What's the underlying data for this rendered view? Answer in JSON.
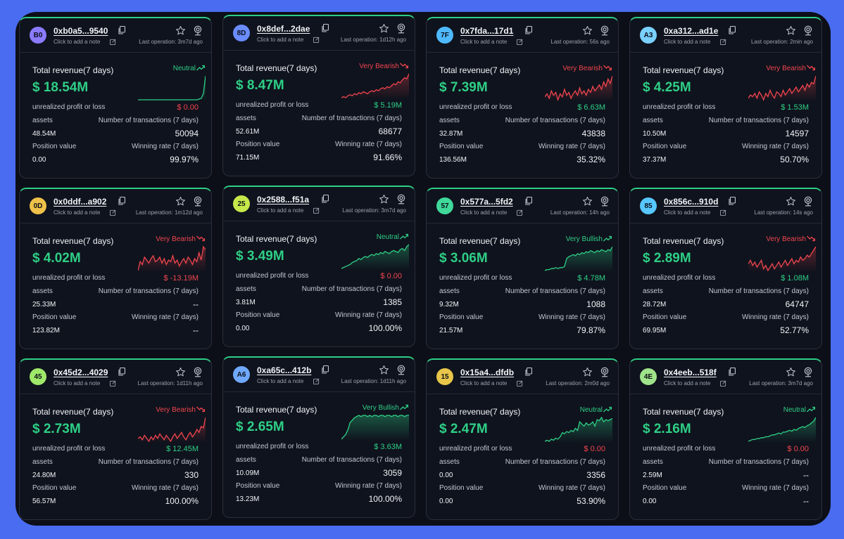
{
  "colors": {
    "bullish": "#2ecf86",
    "bearish": "#f0454e",
    "background": "#0c0f18",
    "card": "#0f131d",
    "page": "#4a6cf0"
  },
  "labels": {
    "total_revenue": "Total revenue(7 days)",
    "unrealized": "unrealized profit or loss",
    "assets": "assets",
    "tx_count": "Number of transactions (7 days)",
    "position_value": "Position value",
    "winning_rate": "Winning rate (7 days)",
    "add_note": "Click to add a note"
  },
  "cards": [
    {
      "avatar": "B0",
      "avatar_color": "#8b7bff",
      "address": "0xb0a5...9540",
      "last_op": "Last operation: 3m7d ago",
      "revenue": "$ 18.54M",
      "trend": "Neutral",
      "trend_dir": "up",
      "unrealized": "$ 0.00",
      "unrealized_sign": "neg",
      "assets": "48.54M",
      "tx_count": "50094",
      "position_value": "0.00",
      "winning_rate": "99.97%",
      "sparkline": [
        0,
        0,
        0,
        0,
        0,
        0,
        0,
        0,
        0,
        0,
        0,
        0,
        0,
        0,
        0,
        0,
        0,
        0,
        0,
        0,
        0,
        0,
        0,
        0,
        0,
        0,
        0,
        0,
        0,
        1,
        2,
        8,
        30
      ]
    },
    {
      "avatar": "8D",
      "avatar_color": "#6a8cff",
      "address": "0x8def...2dae",
      "last_op": "Last operation: 1d12h ago",
      "revenue": "$ 8.47M",
      "trend": "Very Bearish",
      "trend_dir": "down",
      "unrealized": "$ 5.19M",
      "unrealized_sign": "pos",
      "assets": "52.61M",
      "tx_count": "68677",
      "position_value": "71.15M",
      "winning_rate": "91.66%",
      "sparkline": [
        2,
        3,
        2,
        4,
        5,
        4,
        6,
        5,
        7,
        6,
        8,
        7,
        6,
        8,
        9,
        8,
        10,
        9,
        11,
        12,
        11,
        13,
        12,
        14,
        16,
        15,
        18,
        17,
        20,
        22,
        21,
        26
      ]
    },
    {
      "avatar": "7F",
      "avatar_color": "#4fb9ff",
      "address": "0x7fda...17d1",
      "last_op": "Last operation: 56s ago",
      "revenue": "$ 7.39M",
      "trend": "Very Bearish",
      "trend_dir": "down",
      "unrealized": "$ 6.63M",
      "unrealized_sign": "pos",
      "assets": "32.87M",
      "tx_count": "43838",
      "position_value": "136.56M",
      "winning_rate": "35.32%",
      "sparkline": [
        8,
        10,
        7,
        12,
        9,
        11,
        6,
        10,
        8,
        13,
        9,
        11,
        7,
        10,
        12,
        9,
        14,
        10,
        12,
        9,
        13,
        11,
        15,
        12,
        14,
        16,
        13,
        18,
        15,
        20,
        17,
        22
      ]
    },
    {
      "avatar": "A3",
      "avatar_color": "#7ad0ff",
      "address": "0xa312...ad1e",
      "last_op": "Last operation: 2min ago",
      "revenue": "$ 4.25M",
      "trend": "Very Bearish",
      "trend_dir": "down",
      "unrealized": "$ 1.53M",
      "unrealized_sign": "pos",
      "assets": "10.50M",
      "tx_count": "14597",
      "position_value": "37.37M",
      "winning_rate": "50.70%",
      "sparkline": [
        10,
        12,
        11,
        13,
        10,
        14,
        12,
        9,
        13,
        11,
        15,
        12,
        10,
        14,
        13,
        11,
        15,
        12,
        14,
        16,
        13,
        15,
        17,
        14,
        16,
        18,
        15,
        19,
        17,
        20,
        19,
        24
      ]
    },
    {
      "avatar": "0D",
      "avatar_color": "#f0c14a",
      "address": "0x0ddf...a902",
      "last_op": "Last operation: 1m12d ago",
      "revenue": "$ 4.02M",
      "trend": "Very Bearish",
      "trend_dir": "down",
      "unrealized": "$ -13.19M",
      "unrealized_sign": "neg",
      "assets": "25.33M",
      "tx_count": "--",
      "position_value": "123.82M",
      "winning_rate": "--",
      "sparkline": [
        12,
        18,
        16,
        21,
        19,
        17,
        20,
        22,
        18,
        19,
        21,
        17,
        20,
        16,
        19,
        18,
        22,
        17,
        19,
        15,
        18,
        20,
        17,
        21,
        19,
        16,
        20,
        18,
        24,
        19,
        28,
        26
      ]
    },
    {
      "avatar": "25",
      "avatar_color": "#c6e84a",
      "address": "0x2588...f51a",
      "last_op": "Last operation: 3m7d ago",
      "revenue": "$ 3.49M",
      "trend": "Neutral",
      "trend_dir": "up",
      "unrealized": "$ 0.00",
      "unrealized_sign": "neg",
      "assets": "3.81M",
      "tx_count": "1385",
      "position_value": "0.00",
      "winning_rate": "100.00%",
      "sparkline": [
        2,
        3,
        4,
        5,
        6,
        8,
        9,
        10,
        12,
        11,
        13,
        14,
        13,
        15,
        16,
        15,
        17,
        16,
        18,
        17,
        19,
        18,
        17,
        19,
        20,
        19,
        18,
        21,
        22,
        20,
        24,
        26
      ]
    },
    {
      "avatar": "57",
      "avatar_color": "#3fd99a",
      "address": "0x577a...5fd2",
      "last_op": "Last operation: 14h ago",
      "revenue": "$ 3.06M",
      "trend": "Very Bullish",
      "trend_dir": "up",
      "unrealized": "$ 4.78M",
      "unrealized_sign": "pos",
      "assets": "9.32M",
      "tx_count": "1088",
      "position_value": "21.57M",
      "winning_rate": "79.87%",
      "sparkline": [
        2,
        3,
        3,
        4,
        4,
        5,
        4,
        5,
        5,
        6,
        14,
        16,
        17,
        18,
        17,
        19,
        18,
        20,
        19,
        21,
        20,
        22,
        21,
        20,
        22,
        21,
        23,
        22,
        21,
        23,
        22,
        26
      ]
    },
    {
      "avatar": "85",
      "avatar_color": "#57c7ff",
      "address": "0x856c...910d",
      "last_op": "Last operation: 14s ago",
      "revenue": "$ 2.89M",
      "trend": "Very Bearish",
      "trend_dir": "down",
      "unrealized": "$ 1.08M",
      "unrealized_sign": "pos",
      "assets": "28.72M",
      "tx_count": "64747",
      "position_value": "69.95M",
      "winning_rate": "52.77%",
      "sparkline": [
        14,
        16,
        13,
        15,
        12,
        14,
        16,
        11,
        13,
        10,
        12,
        14,
        11,
        13,
        15,
        12,
        14,
        16,
        13,
        15,
        17,
        14,
        16,
        15,
        18,
        16,
        17,
        19,
        18,
        20,
        22,
        24
      ]
    },
    {
      "avatar": "45",
      "avatar_color": "#9ee86a",
      "address": "0x45d2...4029",
      "last_op": "Last operation: 1d11h ago",
      "revenue": "$ 2.73M",
      "trend": "Very Bearish",
      "trend_dir": "down",
      "unrealized": "$ 12.45M",
      "unrealized_sign": "pos",
      "assets": "24.80M",
      "tx_count": "330",
      "position_value": "56.57M",
      "winning_rate": "100.00%",
      "sparkline": [
        14,
        15,
        13,
        16,
        14,
        12,
        15,
        13,
        16,
        14,
        17,
        15,
        13,
        16,
        14,
        12,
        15,
        17,
        14,
        16,
        18,
        15,
        13,
        16,
        18,
        15,
        17,
        20,
        18,
        22,
        21,
        28
      ]
    },
    {
      "avatar": "A6",
      "avatar_color": "#6fa8ff",
      "address": "0xa65c...412b",
      "last_op": "Last operation: 1d11h ago",
      "revenue": "$ 2.65M",
      "trend": "Very Bullish",
      "trend_dir": "up",
      "unrealized": "$ 3.63M",
      "unrealized_sign": "pos",
      "assets": "10.09M",
      "tx_count": "3059",
      "position_value": "13.23M",
      "winning_rate": "100.00%",
      "sparkline": [
        2,
        4,
        6,
        10,
        16,
        18,
        20,
        21,
        22,
        21,
        22,
        22,
        21,
        22,
        21,
        22,
        22,
        21,
        22,
        22,
        21,
        22,
        22,
        21,
        22,
        22,
        21,
        22,
        22,
        21,
        22,
        22
      ]
    },
    {
      "avatar": "15",
      "avatar_color": "#e8c64a",
      "address": "0x15a4...dfdb",
      "last_op": "Last operation: 2m0d ago",
      "revenue": "$ 2.47M",
      "trend": "Neutral",
      "trend_dir": "up",
      "unrealized": "$ 0.00",
      "unrealized_sign": "neg",
      "assets": "0.00",
      "tx_count": "3356",
      "position_value": "0.00",
      "winning_rate": "53.90%",
      "sparkline": [
        2,
        3,
        2,
        4,
        3,
        5,
        4,
        6,
        10,
        9,
        11,
        10,
        12,
        11,
        14,
        12,
        20,
        18,
        16,
        19,
        17,
        18,
        20,
        16,
        22,
        21,
        24,
        20,
        22,
        21,
        22,
        23
      ]
    },
    {
      "avatar": "4E",
      "avatar_color": "#9fe38a",
      "address": "0x4eeb...518f",
      "last_op": "Last operation: 3m7d ago",
      "revenue": "$ 2.16M",
      "trend": "Neutral",
      "trend_dir": "up",
      "unrealized": "$ 0.00",
      "unrealized_sign": "neg",
      "assets": "2.59M",
      "tx_count": "--",
      "position_value": "0.00",
      "winning_rate": "--",
      "sparkline": [
        2,
        3,
        4,
        4,
        5,
        5,
        6,
        6,
        7,
        7,
        8,
        9,
        9,
        10,
        11,
        10,
        12,
        12,
        13,
        14,
        13,
        15,
        14,
        16,
        17,
        18,
        17,
        19,
        20,
        22,
        24,
        28
      ]
    }
  ]
}
